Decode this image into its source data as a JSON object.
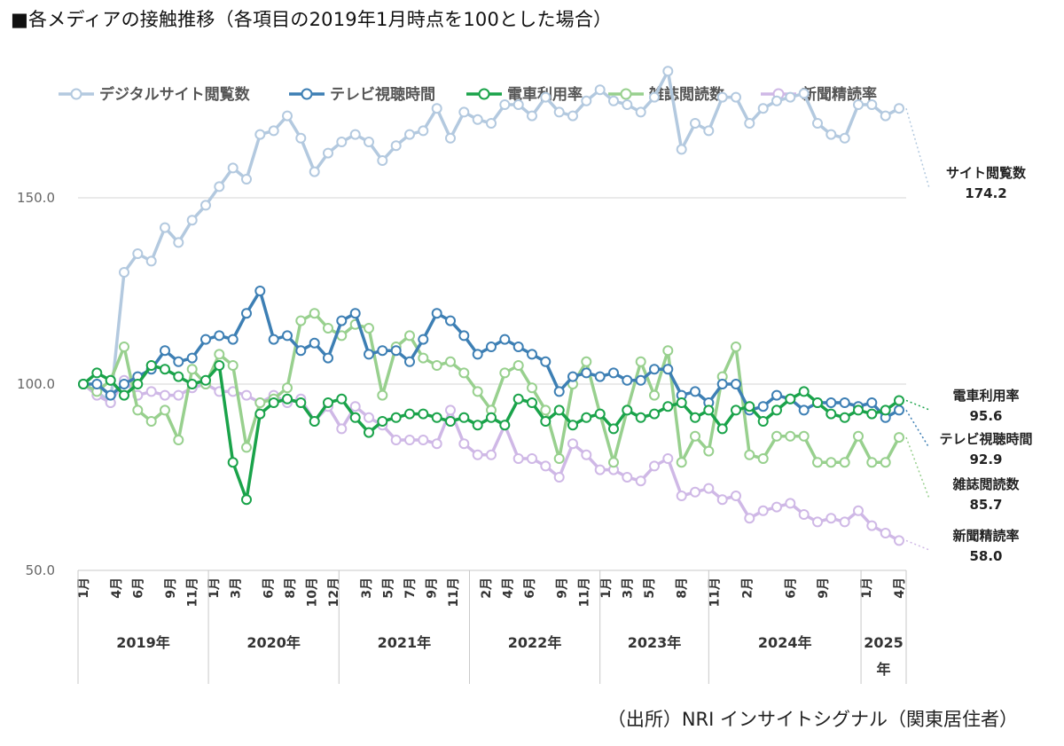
{
  "title": "■各メディアの接触推移（各項目の2019年1月時点を100とした場合）",
  "source": "（出所）NRI インサイトシグナル（関東居住者）",
  "chart_data": {
    "type": "line",
    "ylim": [
      50,
      175
    ],
    "yticks": [
      50,
      100,
      150
    ],
    "ytick_labels": [
      "50.0",
      "100.0",
      "150.0"
    ],
    "grid": true,
    "legend_position": "top",
    "x_month_labels": [
      "1月",
      "4月",
      "6月",
      "9月",
      "11月",
      "1月",
      "3月",
      "6月",
      "8月",
      "10月",
      "12月",
      "3月",
      "5月",
      "7月",
      "9月",
      "11月",
      "2月",
      "4月",
      "6月",
      "9月",
      "11月",
      "1月",
      "3月",
      "5月",
      "8月",
      "11月",
      "2月",
      "6月",
      "9月",
      "1月",
      "4月"
    ],
    "x_month_index": [
      0,
      3,
      5,
      8,
      10,
      12,
      14,
      17,
      19,
      21,
      23,
      26,
      28,
      30,
      32,
      34,
      37,
      39,
      41,
      44,
      46,
      48,
      50,
      52,
      55,
      58,
      61,
      65,
      68,
      72,
      75
    ],
    "years": [
      {
        "label": "2019年",
        "start": 0,
        "end": 11
      },
      {
        "label": "2020年",
        "start": 12,
        "end": 23
      },
      {
        "label": "2021年",
        "start": 24,
        "end": 35
      },
      {
        "label": "2022年",
        "start": 36,
        "end": 47
      },
      {
        "label": "2023年",
        "start": 48,
        "end": 57
      },
      {
        "label": "2024年",
        "start": 58,
        "end": 71
      },
      {
        "label": "2025年",
        "start": 72,
        "end": 75
      }
    ],
    "series": [
      {
        "name": "デジタルサイト閲覧数",
        "color": "#b3c9df",
        "end_label": "サイト閲覧数",
        "end_value": "174.2",
        "values": [
          100,
          98,
          95,
          130,
          135,
          133,
          142,
          138,
          144,
          148,
          153,
          158,
          155,
          167,
          168,
          172,
          166,
          157,
          162,
          165,
          167,
          165,
          160,
          164,
          167,
          168,
          174,
          166,
          173,
          171,
          170,
          175,
          175,
          172,
          177,
          173,
          172,
          176,
          179,
          176,
          175,
          173,
          177,
          184,
          163,
          170,
          168,
          177,
          177,
          170,
          174,
          176,
          177,
          178,
          170,
          167,
          166,
          175,
          175,
          172,
          174
        ]
      },
      {
        "name": "テレビ視聴時間",
        "color": "#3d7fb4",
        "end_label": "テレビ視聴時間",
        "end_value": "92.9",
        "values": [
          100,
          100,
          97,
          100,
          102,
          104,
          109,
          106,
          107,
          112,
          113,
          112,
          119,
          125,
          112,
          113,
          109,
          111,
          107,
          117,
          119,
          108,
          109,
          109,
          106,
          112,
          119,
          117,
          113,
          108,
          110,
          112,
          110,
          108,
          106,
          98,
          102,
          103,
          102,
          103,
          101,
          101,
          104,
          104,
          97,
          98,
          95,
          100,
          100,
          93,
          94,
          97,
          96,
          93,
          95,
          95,
          95,
          94,
          95,
          91,
          93
        ]
      },
      {
        "name": "電車利用率",
        "color": "#1aa34a",
        "end_label": "電車利用率",
        "end_value": "95.6",
        "values": [
          100,
          103,
          101,
          97,
          100,
          105,
          104,
          102,
          100,
          101,
          105,
          79,
          69,
          92,
          95,
          96,
          95,
          90,
          95,
          96,
          91,
          87,
          90,
          91,
          92,
          92,
          91,
          90,
          91,
          89,
          91,
          89,
          96,
          95,
          90,
          93,
          89,
          91,
          92,
          88,
          93,
          91,
          92,
          94,
          95,
          91,
          93,
          88,
          93,
          94,
          90,
          93,
          96,
          98,
          95,
          92,
          91,
          93,
          92,
          93,
          95.6
        ]
      },
      {
        "name": "雑誌閲読数",
        "color": "#98d08e",
        "end_label": "雑誌閲読数",
        "end_value": "85.7",
        "values": [
          100,
          98,
          101,
          110,
          93,
          90,
          93,
          85,
          104,
          100,
          108,
          105,
          83,
          95,
          96,
          99,
          117,
          119,
          115,
          113,
          116,
          115,
          97,
          110,
          113,
          107,
          105,
          106,
          103,
          98,
          93,
          103,
          105,
          99,
          93,
          80,
          100,
          106,
          92,
          79,
          93,
          106,
          97,
          109,
          79,
          86,
          82,
          102,
          110,
          81,
          80,
          86,
          86,
          86,
          79,
          79,
          79,
          86,
          79,
          79,
          85.7
        ]
      },
      {
        "name": "新聞精読率",
        "color": "#cfb8e6",
        "end_label": "新聞精読率",
        "end_value": "58.0",
        "values": [
          100,
          97,
          95,
          101,
          97,
          98,
          97,
          97,
          99,
          100,
          98,
          98,
          97,
          95,
          97,
          95,
          96,
          90,
          94,
          88,
          94,
          91,
          89,
          85,
          85,
          85,
          84,
          93,
          84,
          81,
          81,
          89,
          80,
          80,
          78,
          75,
          84,
          81,
          77,
          77,
          75,
          74,
          78,
          80,
          70,
          71,
          72,
          69,
          70,
          64,
          66,
          67,
          68,
          65,
          63,
          64,
          63,
          66,
          62,
          60,
          58
        ]
      }
    ]
  }
}
